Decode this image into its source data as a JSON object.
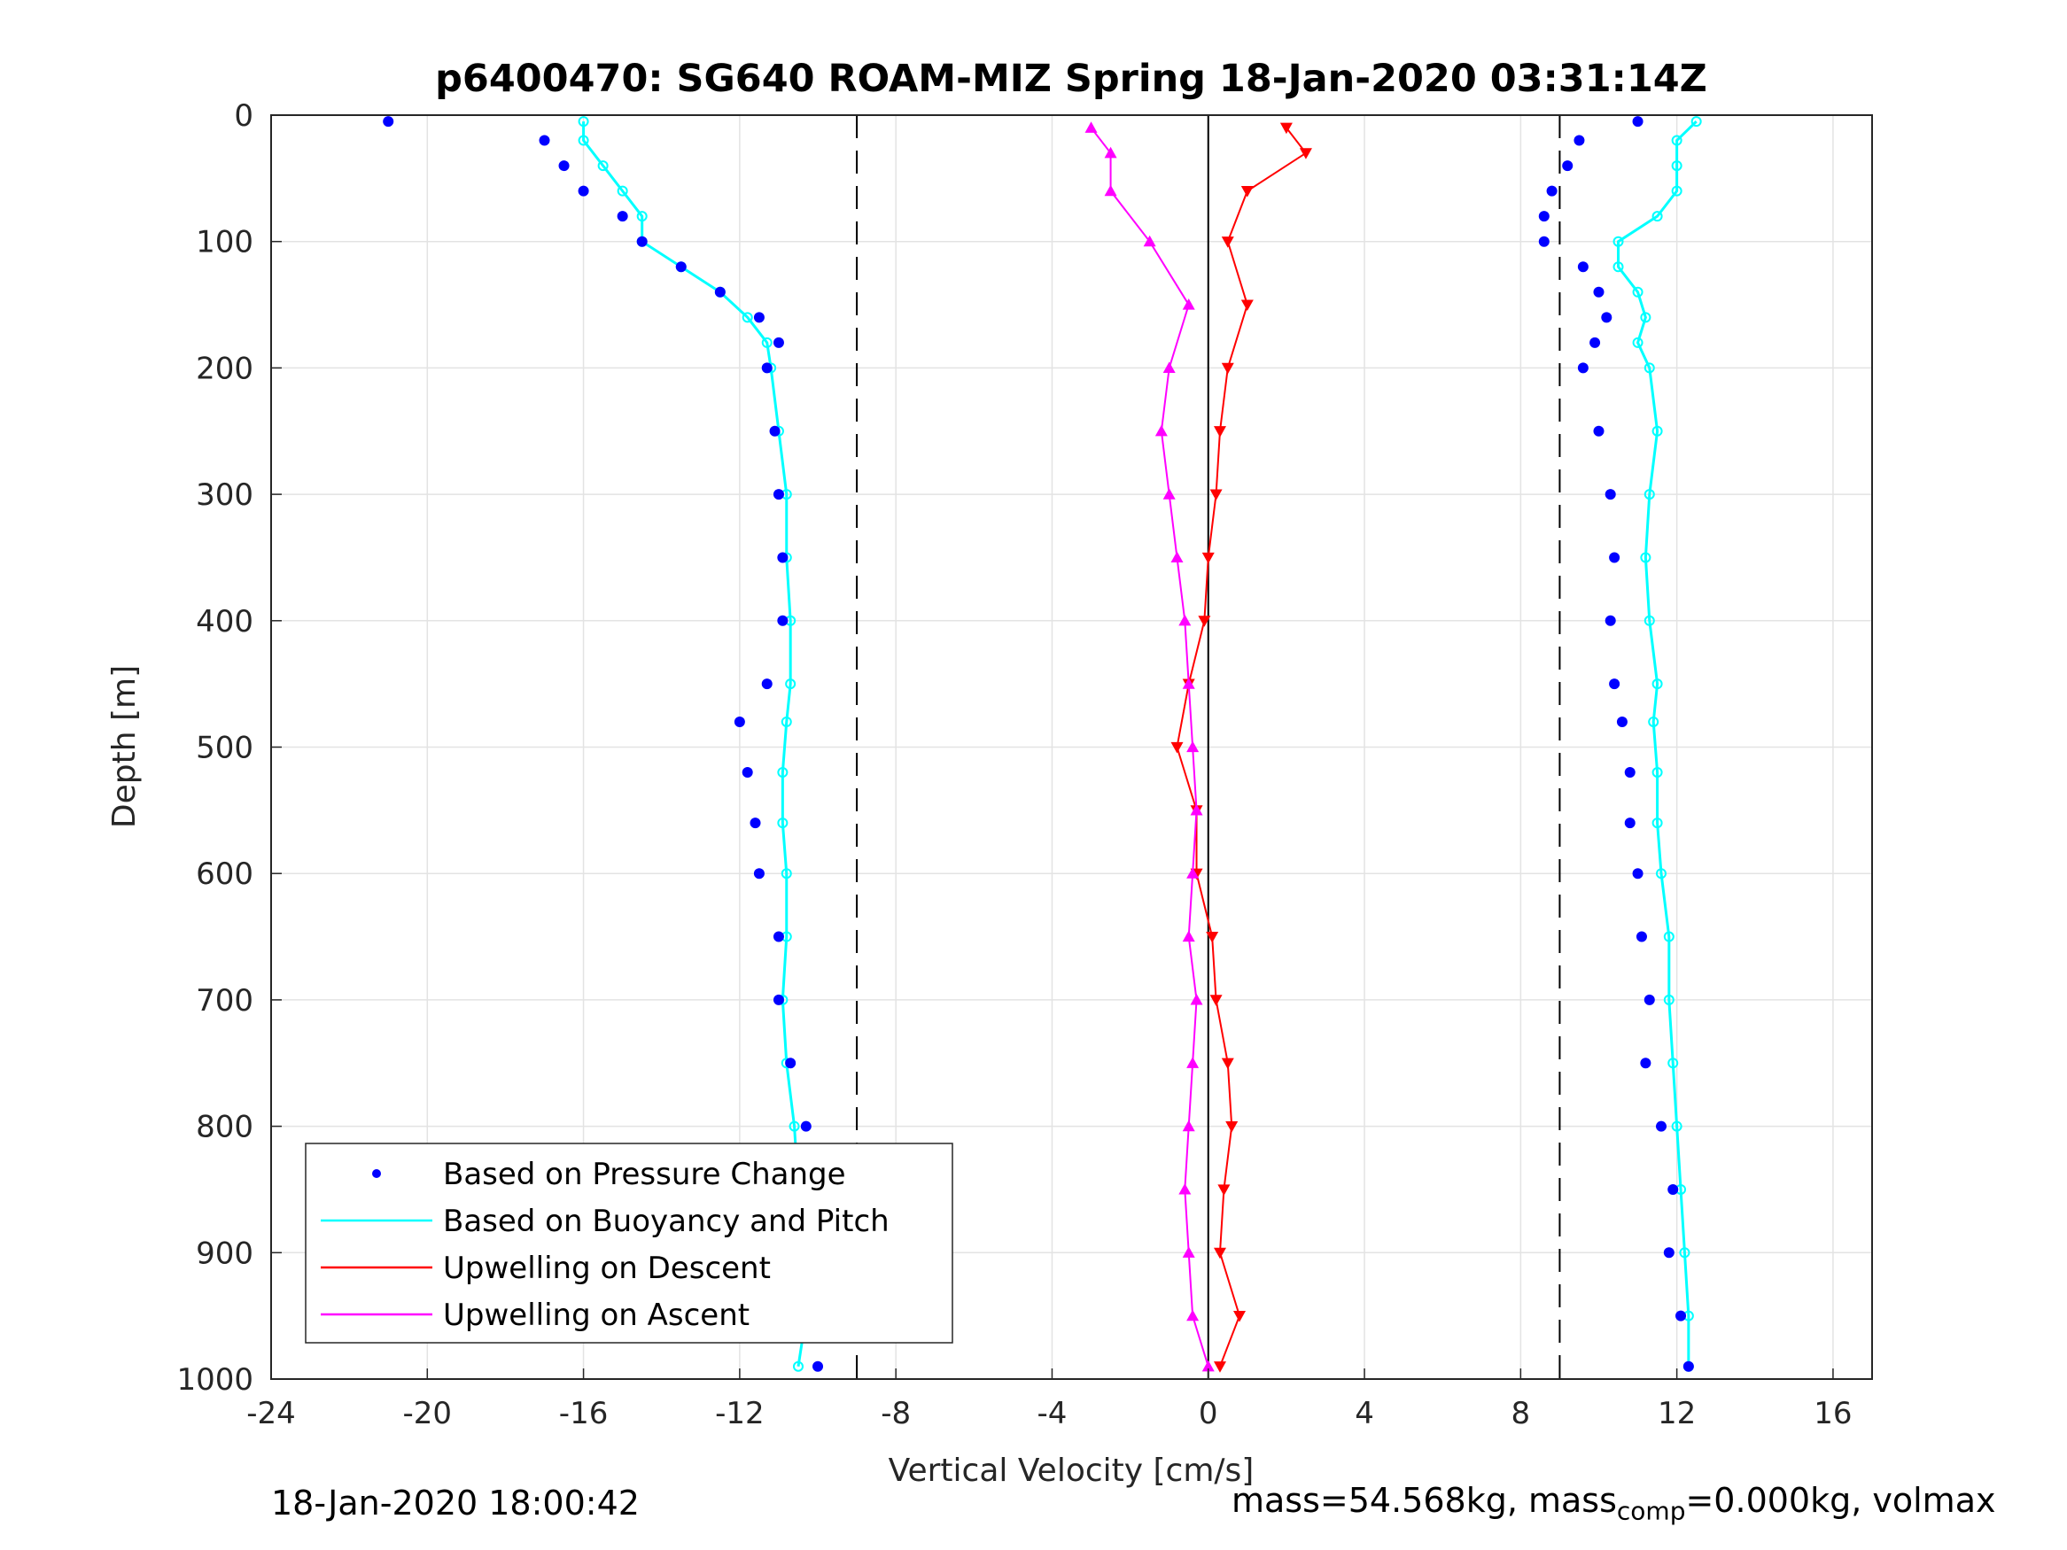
{
  "chart_data": {
    "type": "scatter",
    "title": "p6400470: SG640 ROAM-MIZ Spring 18-Jan-2020 03:31:14Z",
    "xlabel": "Vertical Velocity [cm/s]",
    "ylabel": "Depth [m]",
    "xlim": [
      -24,
      17
    ],
    "ylim": [
      0,
      1000
    ],
    "y_reversed": true,
    "xticks": [
      "-24",
      "-20",
      "-16",
      "-12",
      "-8",
      "-4",
      "0",
      "4",
      "8",
      "12",
      "16"
    ],
    "yticks": [
      "0",
      "100",
      "200",
      "300",
      "400",
      "500",
      "600",
      "700",
      "800",
      "900",
      "1000"
    ],
    "grid": true,
    "legend_position": "bottom-left",
    "reference_lines": [
      {
        "x": -9,
        "style": "dashed"
      },
      {
        "x": 9,
        "style": "dashed"
      },
      {
        "x": 0,
        "style": "solid"
      }
    ],
    "series": [
      {
        "name": "Based on Pressure Change",
        "color": "#0000ff",
        "marker": "dot",
        "depth": [
          5,
          20,
          40,
          60,
          80,
          100,
          120,
          140,
          160,
          180,
          200,
          250,
          300,
          350,
          400,
          450,
          480,
          520,
          560,
          600,
          650,
          700,
          750,
          800,
          850,
          900,
          950,
          990
        ],
        "descent": [
          -21,
          -17,
          -16.5,
          -16,
          -15,
          -14.5,
          -13.5,
          -12.5,
          -11.5,
          -11,
          -11.3,
          -11.1,
          -11,
          -10.9,
          -10.9,
          -11.3,
          -12,
          -11.8,
          -11.6,
          -11.5,
          -11,
          -11,
          -10.7,
          -10.3,
          -10.2,
          -9.9,
          -9.8,
          -10
        ],
        "ascent": [
          11,
          9.5,
          9.2,
          8.8,
          8.6,
          8.6,
          9.6,
          10,
          10.2,
          9.9,
          9.6,
          10,
          10.3,
          10.4,
          10.3,
          10.4,
          10.6,
          10.8,
          10.8,
          11,
          11.1,
          11.3,
          11.2,
          11.6,
          11.9,
          11.8,
          12.1,
          12.3
        ]
      },
      {
        "name": "Based on Buoyancy and Pitch",
        "color": "#00ffff",
        "marker": "circle-line",
        "depth": [
          5,
          20,
          40,
          60,
          80,
          100,
          120,
          140,
          160,
          180,
          200,
          250,
          300,
          350,
          400,
          450,
          480,
          520,
          560,
          600,
          650,
          700,
          750,
          800,
          850,
          900,
          950,
          990
        ],
        "descent": [
          -16,
          -16,
          -15.5,
          -15,
          -14.5,
          -14.5,
          -13.5,
          -12.5,
          -11.8,
          -11.3,
          -11.2,
          -11,
          -10.8,
          -10.8,
          -10.7,
          -10.7,
          -10.8,
          -10.9,
          -10.9,
          -10.8,
          -10.8,
          -10.9,
          -10.8,
          -10.6,
          -10.5,
          -10.4,
          -10.3,
          -10.5
        ],
        "ascent": [
          12.5,
          12,
          12,
          12,
          11.5,
          10.5,
          10.5,
          11,
          11.2,
          11,
          11.3,
          11.5,
          11.3,
          11.2,
          11.3,
          11.5,
          11.4,
          11.5,
          11.5,
          11.6,
          11.8,
          11.8,
          11.9,
          12,
          12.1,
          12.2,
          12.3,
          12.3
        ]
      },
      {
        "name": "Upwelling on Descent",
        "color": "#ff0000",
        "marker": "triangle-down",
        "depth": [
          10,
          30,
          60,
          100,
          150,
          200,
          250,
          300,
          350,
          400,
          450,
          500,
          550,
          600,
          650,
          700,
          750,
          800,
          850,
          900,
          950,
          990
        ],
        "values": [
          2,
          2.5,
          1,
          0.5,
          1,
          0.5,
          0.3,
          0.2,
          0,
          -0.1,
          -0.5,
          -0.8,
          -0.3,
          -0.3,
          0.1,
          0.2,
          0.5,
          0.6,
          0.4,
          0.3,
          0.8,
          0.3
        ]
      },
      {
        "name": "Upwelling on Ascent",
        "color": "#ff00ff",
        "marker": "triangle-up",
        "depth": [
          10,
          30,
          60,
          100,
          150,
          200,
          250,
          300,
          350,
          400,
          450,
          500,
          550,
          600,
          650,
          700,
          750,
          800,
          850,
          900,
          950,
          990
        ],
        "values": [
          -3,
          -2.5,
          -2.5,
          -1.5,
          -0.5,
          -1,
          -1.2,
          -1,
          -0.8,
          -0.6,
          -0.5,
          -0.4,
          -0.3,
          -0.4,
          -0.5,
          -0.3,
          -0.4,
          -0.5,
          -0.6,
          -0.5,
          -0.4,
          0
        ]
      }
    ]
  },
  "footer": {
    "timestamp": "18-Jan-2020 18:00:42",
    "mass_prefix": "mass=54.568kg, mass",
    "mass_sub": "comp",
    "mass_suffix": "=0.000kg, volmax"
  }
}
